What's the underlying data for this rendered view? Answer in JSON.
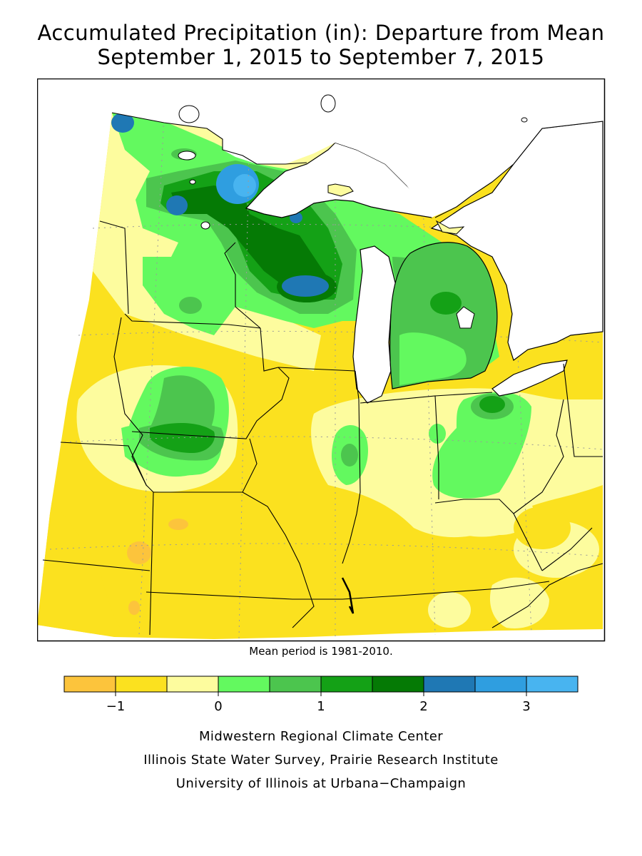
{
  "title": {
    "line1": "Accumulated Precipitation (in): Departure from Mean",
    "line2": "September 1, 2015 to September 7, 2015"
  },
  "note": "Mean period is 1981-2010.",
  "legend": {
    "bins": [
      {
        "color": "#fcc43c",
        "range": [
          -1.5,
          -1.0
        ]
      },
      {
        "color": "#fbe11f",
        "range": [
          -1.0,
          -0.5
        ]
      },
      {
        "color": "#fdfc9e",
        "range": [
          -0.5,
          0.0
        ]
      },
      {
        "color": "#63f95f",
        "range": [
          0.0,
          0.5
        ]
      },
      {
        "color": "#4cc54e",
        "range": [
          0.5,
          1.0
        ]
      },
      {
        "color": "#14a116",
        "range": [
          1.0,
          1.5
        ]
      },
      {
        "color": "#057a05",
        "range": [
          1.5,
          2.0
        ]
      },
      {
        "color": "#1f78b4",
        "range": [
          2.0,
          2.5
        ]
      },
      {
        "color": "#2f9ee0",
        "range": [
          2.5,
          3.0
        ]
      },
      {
        "color": "#48b4f0",
        "range": [
          3.0,
          3.5
        ]
      }
    ],
    "ticks": [
      {
        "value": -1,
        "label": "−1"
      },
      {
        "value": 0,
        "label": "0"
      },
      {
        "value": 1,
        "label": "1"
      },
      {
        "value": 2,
        "label": "2"
      },
      {
        "value": 3,
        "label": "3"
      }
    ]
  },
  "credits": {
    "line1": "Midwestern Regional Climate Center",
    "line2": "Illinois State Water Survey, Prairie Research Institute",
    "line3": "University of Illinois at Urbana−Champaign"
  },
  "map": {
    "colors": {
      "water": "#ffffff",
      "outline": "#000000",
      "graticule": "#9a9a9a"
    }
  }
}
